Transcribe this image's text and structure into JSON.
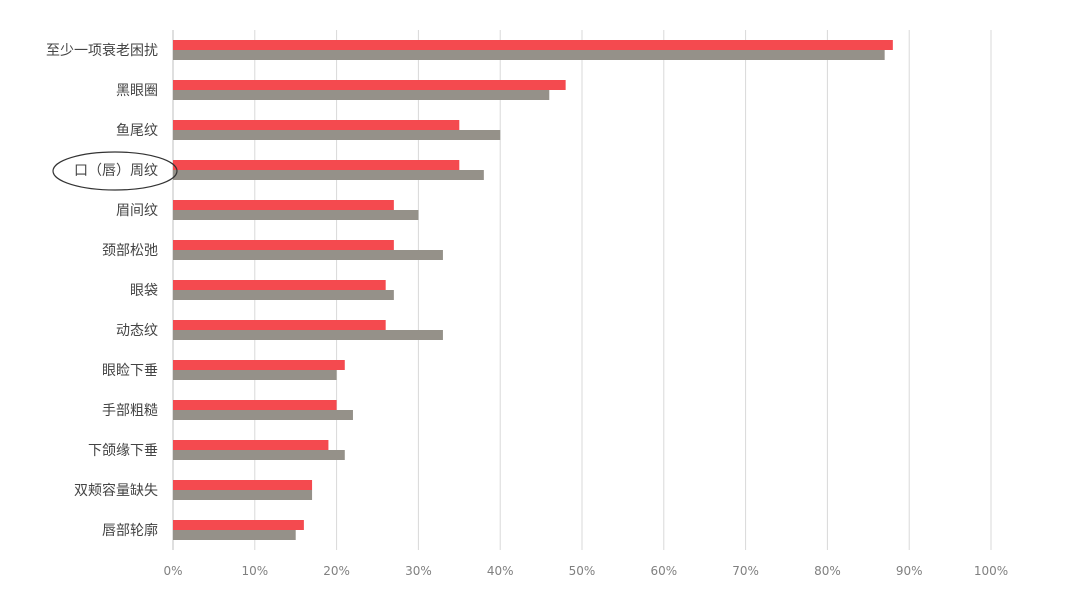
{
  "chart_data": {
    "type": "bar",
    "orientation": "horizontal",
    "categories": [
      "至少一项衰老困扰",
      "黑眼圈",
      "鱼尾纹",
      "口（唇）周纹",
      "眉间纹",
      "颈部松弛",
      "眼袋",
      "动态纹",
      "眼睑下垂",
      "手部粗糙",
      "下颌缘下垂",
      "双颊容量缺失",
      "唇部轮廓"
    ],
    "series": [
      {
        "color": "#f44a4f",
        "values": [
          88,
          48,
          35,
          35,
          27,
          27,
          26,
          26,
          21,
          20,
          19,
          17,
          16
        ]
      },
      {
        "color": "#959189",
        "values": [
          87,
          46,
          40,
          38,
          30,
          33,
          27,
          33,
          20,
          22,
          21,
          17,
          15
        ]
      }
    ],
    "xticks": [
      "0%",
      "10%",
      "20%",
      "30%",
      "40%",
      "50%",
      "60%",
      "70%",
      "80%",
      "90%",
      "100%"
    ],
    "xlim": [
      0,
      100
    ],
    "grid": true,
    "highlighted_category": "口（唇）周纹"
  }
}
